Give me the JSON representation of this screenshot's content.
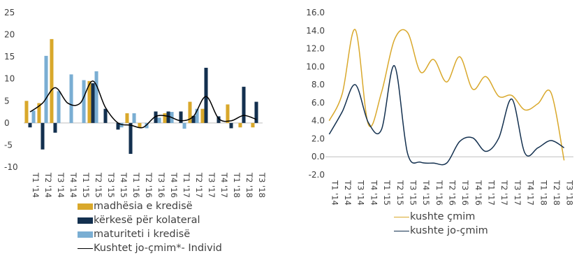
{
  "chart_data": [
    {
      "type": "bar",
      "categories": [
        "T1 '14",
        "T2 '14",
        "T3 '14",
        "T4 '14",
        "T1 '15",
        "T2 '15",
        "T3 '15",
        "T4 '15",
        "T1 '16",
        "T2 '16",
        "T3 '16",
        "T4 '16",
        "T1 '17",
        "T2 '17",
        "T3 '17",
        "T4 '17",
        "T1 '18",
        "T2 '18",
        "T3 '18"
      ],
      "ylim": [
        -10,
        25
      ],
      "yticks": [
        "-10",
        "-5",
        "0",
        "5",
        "10",
        "15",
        "20",
        "25"
      ],
      "series": [
        {
          "name": "madhësia e kredisë",
          "type": "bar",
          "color": "#d9a82b",
          "values": [
            5,
            4.5,
            19,
            0,
            0,
            9.5,
            0,
            0,
            2.2,
            -1,
            0,
            2.2,
            0,
            4.8,
            3.2,
            0,
            4.2,
            -1,
            -1
          ]
        },
        {
          "name": "kërkesë për kolateral",
          "type": "bar",
          "color": "#13304f",
          "values": [
            -1,
            -6,
            -2.2,
            0,
            0,
            9,
            3.2,
            -1.5,
            -7,
            0,
            2.6,
            2.6,
            2.6,
            1.6,
            12.5,
            1.5,
            -1.2,
            8.2,
            4.8
          ]
        },
        {
          "name": "maturiteti i kredisë",
          "type": "bar",
          "color": "#7aaed3",
          "values": [
            2.8,
            15.2,
            7.2,
            11,
            9.7,
            11.7,
            0,
            -1,
            2.2,
            -1.2,
            1.2,
            2.5,
            -1.3,
            3.2,
            0,
            0,
            0,
            0,
            0
          ]
        },
        {
          "name": "Kushtet jo-çmim*- Individ",
          "type": "line",
          "color": "#000000",
          "values": [
            2.5,
            4.5,
            8,
            4.5,
            4.5,
            9.5,
            3.5,
            0,
            -0.5,
            -1,
            1.5,
            1.5,
            0.5,
            1.5,
            6,
            1,
            0.5,
            1.7,
            0.8
          ]
        }
      ]
    },
    {
      "type": "line",
      "categories": [
        "T1 '14",
        "T2 '14",
        "T3 '14",
        "T4 '14",
        "T1 '15",
        "T2 '15",
        "T3 '15",
        "T4 '15",
        "T1 '16",
        "T2 '16",
        "T3 '16",
        "T4 '16",
        "T1 '17",
        "T2 '17",
        "T3 '17",
        "T4 '17",
        "T1 '18",
        "T2 '18",
        "T3 '18"
      ],
      "ylim": [
        -2.0,
        16.0
      ],
      "yticks": [
        "-2.0",
        "0.0",
        "2.0",
        "4.0",
        "6.0",
        "8.0",
        "10.0",
        "12.0",
        "14.0",
        "16.0"
      ],
      "series": [
        {
          "name": "kushte çmim",
          "color": "#d9a82b",
          "values": [
            4.0,
            7.0,
            14.1,
            3.6,
            7.1,
            13.0,
            13.8,
            9.4,
            10.8,
            8.3,
            11.1,
            7.5,
            8.9,
            6.7,
            6.8,
            5.2,
            5.9,
            7.1,
            -0.4
          ]
        },
        {
          "name": "kushte jo-çmim",
          "color": "#13304f",
          "values": [
            2.5,
            5.0,
            8.0,
            3.8,
            3.0,
            10.1,
            0.4,
            -0.6,
            -0.7,
            -0.7,
            1.7,
            2.1,
            0.6,
            2.1,
            6.4,
            0.4,
            1.0,
            1.8,
            1.0
          ]
        }
      ]
    }
  ]
}
